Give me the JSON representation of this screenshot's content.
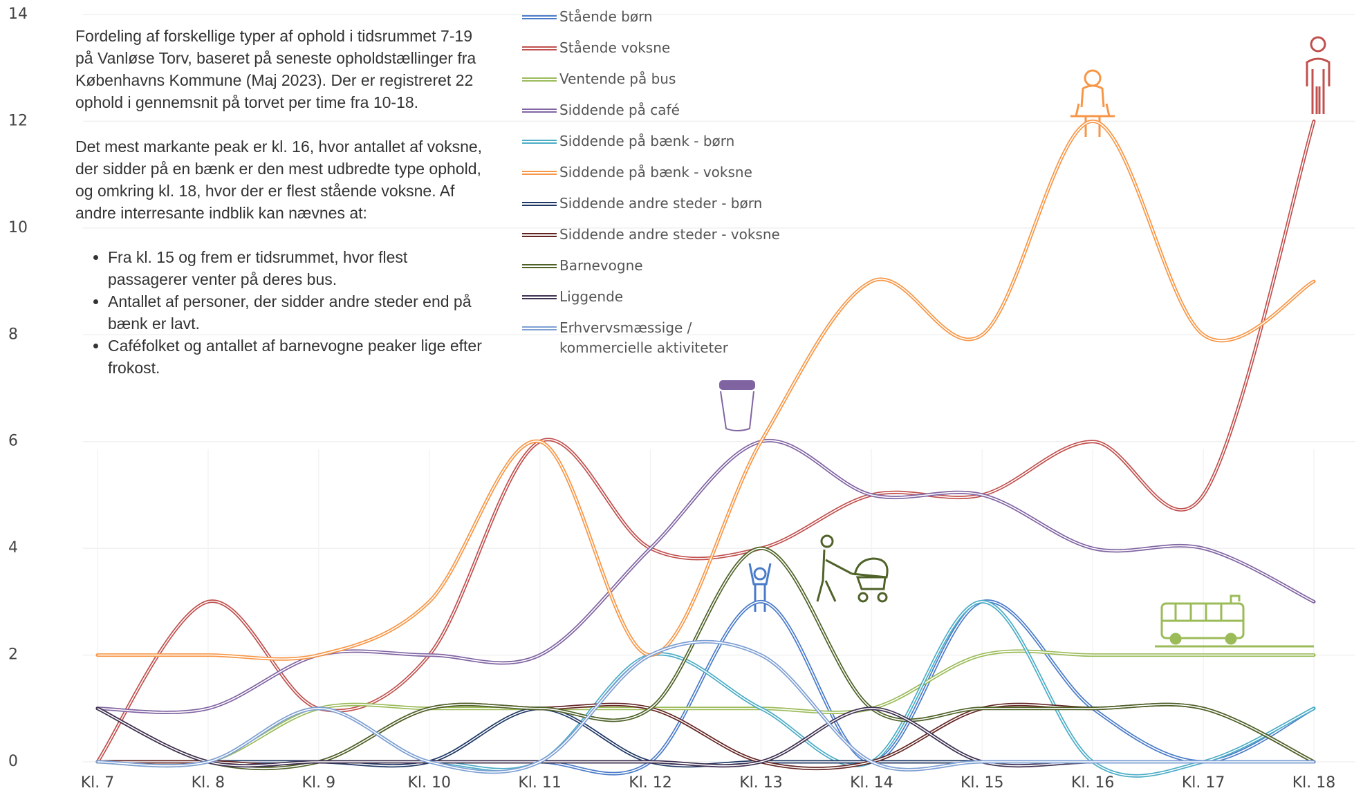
{
  "chart_data": {
    "type": "line",
    "categories": [
      "Kl. 7",
      "Kl. 8",
      "Kl. 9",
      "Kl. 10",
      "Kl. 11",
      "Kl. 12",
      "Kl. 13",
      "Kl. 14",
      "Kl. 15",
      "Kl. 16",
      "Kl. 17",
      "Kl. 18"
    ],
    "ylim": [
      0,
      14
    ],
    "yticks": [
      0,
      2,
      4,
      6,
      8,
      10,
      12,
      14
    ],
    "grid": true,
    "series": [
      {
        "name": "Stående børn",
        "color": "#4a7bc8",
        "values": [
          0,
          0,
          0,
          0,
          0,
          0,
          3,
          0,
          3,
          1,
          0,
          1
        ]
      },
      {
        "name": "Stående voksne",
        "color": "#c0504d",
        "values": [
          0,
          3,
          1,
          2,
          6,
          4,
          4,
          5,
          5,
          6,
          5,
          12
        ]
      },
      {
        "name": "Ventende på bus",
        "color": "#9bbb59",
        "values": [
          0,
          0,
          1,
          1,
          1,
          1,
          1,
          1,
          2,
          2,
          2,
          2
        ]
      },
      {
        "name": "Siddende på café",
        "color": "#8064a2",
        "values": [
          1,
          1,
          2,
          2,
          2,
          4,
          6,
          5,
          5,
          4,
          4,
          3
        ]
      },
      {
        "name": "Siddende på bænk - børn",
        "color": "#4bacc6",
        "values": [
          0,
          0,
          0,
          0,
          0,
          2,
          1,
          0,
          3,
          0,
          0,
          1
        ]
      },
      {
        "name": "Siddende på bænk - voksne",
        "color": "#f79646",
        "values": [
          2,
          2,
          2,
          3,
          6,
          2,
          6,
          9,
          8,
          12,
          8,
          9
        ]
      },
      {
        "name": "Siddende andre steder - børn",
        "color": "#1f3864",
        "values": [
          0,
          0,
          0,
          0,
          1,
          0,
          0,
          0,
          0,
          0,
          0,
          0
        ]
      },
      {
        "name": "Siddende andre steder - voksne",
        "color": "#632523",
        "values": [
          0,
          0,
          0,
          1,
          1,
          1,
          0,
          0,
          1,
          1,
          1,
          0
        ]
      },
      {
        "name": "Barnevogne",
        "color": "#4f6228",
        "values": [
          1,
          0,
          0,
          1,
          1,
          1,
          4,
          1,
          1,
          1,
          1,
          0
        ]
      },
      {
        "name": "Liggende",
        "color": "#3f3151",
        "values": [
          1,
          0,
          0,
          0,
          0,
          0,
          0,
          1,
          0,
          0,
          0,
          0
        ]
      },
      {
        "name": "Erhvervsmæssige / kommercielle aktiviteter",
        "color": "#7d9fd3",
        "values": [
          0,
          0,
          1,
          0,
          0,
          2,
          2,
          0,
          0,
          0,
          0,
          0
        ]
      }
    ]
  },
  "description": {
    "paragraphs": [
      "Fordeling af forskellige typer af ophold i tidsrummet 7-19 på Vanløse Torv, baseret på seneste opholdstællinger fra Københavns Kommune (Maj 2023). Der er registreret 22 ophold i gennemsnit på torvet per time fra 10-18.",
      "Det mest markante peak er kl. 16, hvor antallet af voksne, der sidder på en bænk er den mest udbredte type ophold, og omkring kl. 18, hvor der er flest stående voksne. Af andre interresante indblik kan nævnes at:"
    ],
    "bullets": [
      "Fra kl. 15 og frem er tidsrummet, hvor flest passagerer venter på deres bus.",
      "Antallet af personer, der sidder andre steder end på bænk er lavt.",
      "Caféfolket og antallet af barnevogne peaker lige efter frokost."
    ]
  }
}
